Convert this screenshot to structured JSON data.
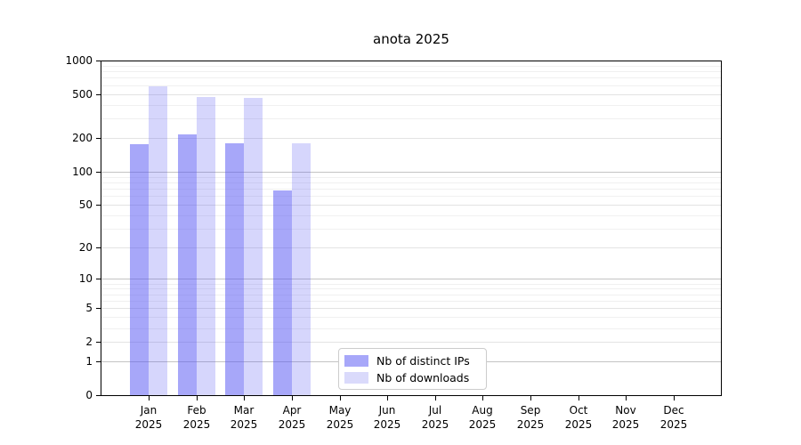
{
  "title": "anota 2025",
  "chart_data": {
    "type": "bar",
    "title": "anota 2025",
    "xlabel": "",
    "ylabel": "",
    "yscale": "symlog",
    "ylim": [
      0,
      1000
    ],
    "yticks": [
      1000,
      500,
      200,
      100,
      50,
      20,
      10,
      5,
      2,
      1,
      0
    ],
    "grid": "horizontal",
    "legend_position": "inside-bottom-center",
    "categories": [
      "Jan 2025",
      "Feb 2025",
      "Mar 2025",
      "Apr 2025",
      "May 2025",
      "Jun 2025",
      "Jul 2025",
      "Aug 2025",
      "Sep 2025",
      "Oct 2025",
      "Nov 2025",
      "Dec 2025"
    ],
    "series": [
      {
        "name": "Nb of distinct IPs",
        "color": "#a7a7f9",
        "values": [
          177,
          216,
          180,
          67,
          0,
          0,
          0,
          0,
          0,
          0,
          0,
          0
        ]
      },
      {
        "name": "Nb of downloads",
        "color": "#dadafb",
        "values": [
          585,
          470,
          460,
          180,
          0,
          0,
          0,
          0,
          0,
          0,
          0,
          0
        ]
      }
    ]
  },
  "colors": {
    "ips_bar": "#a7a7f9",
    "downloads_bar": "#dadafb",
    "grid_decade": "#c4c4c4",
    "grid_labeled": "#e3e3e3",
    "grid_minor": "#f0f0f0",
    "axis": "#000000"
  }
}
